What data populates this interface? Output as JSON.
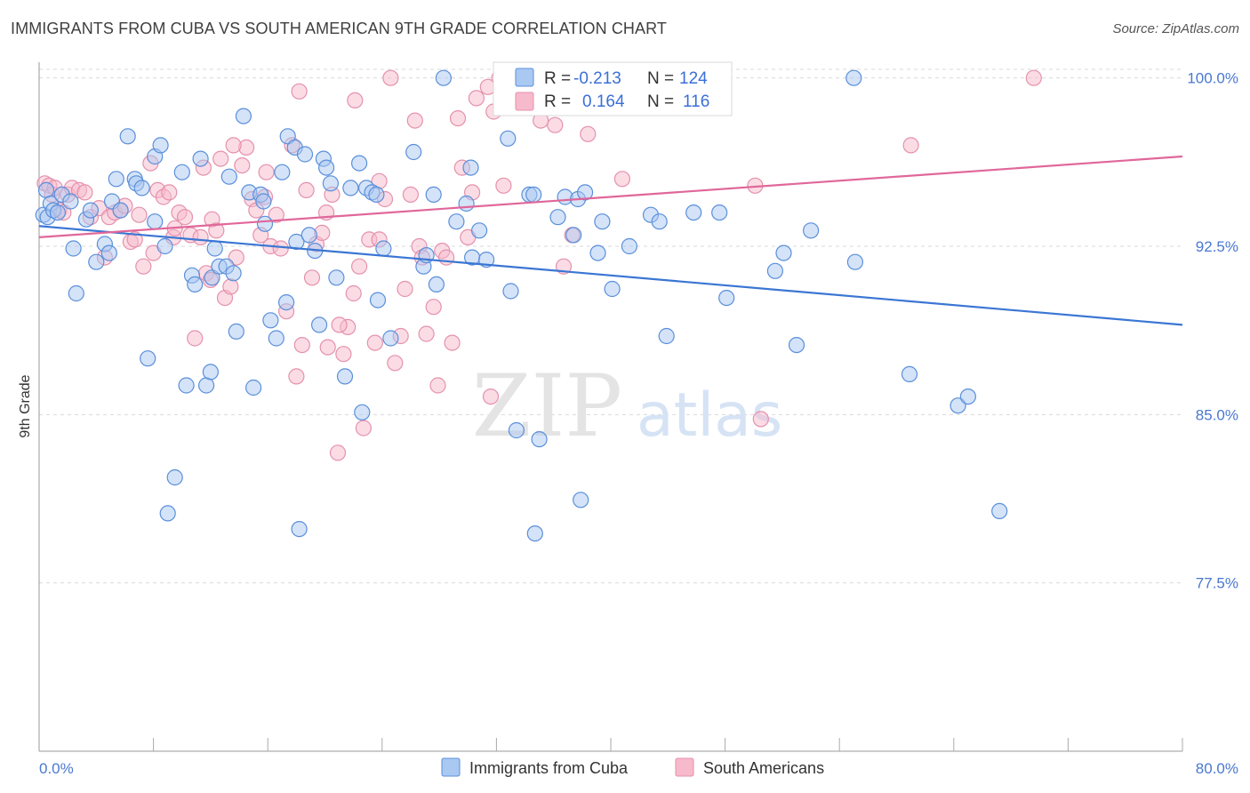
{
  "header": {
    "title": "IMMIGRANTS FROM CUBA VS SOUTH AMERICAN 9TH GRADE CORRELATION CHART",
    "source": "Source: ZipAtlas.com"
  },
  "watermark": {
    "zip": "ZIP",
    "atlas": "atlas"
  },
  "stats_box": {
    "rows": [
      {
        "r_label": "R = ",
        "r_value": "-0.213",
        "n_label": "N = ",
        "n_value": "124",
        "color": "#a9c8f2"
      },
      {
        "r_label": "R = ",
        "r_value": "0.164",
        "n_label": "N = ",
        "n_value": "116",
        "color": "#f7b9cc"
      }
    ]
  },
  "legend": {
    "items": [
      {
        "label": "Immigrants from Cuba",
        "color": "#a9c8f2"
      },
      {
        "label": "South Americans",
        "color": "#f7b9cc"
      }
    ]
  },
  "colors": {
    "blue_fill": "#a9c8f2",
    "blue_stroke": "#5a8fdb",
    "blue_line": "#3a76d4",
    "pink_fill": "#f7b9cc",
    "pink_stroke": "#e591ad",
    "pink_line": "#e0679a",
    "grid": "#d9d9d9",
    "tick_text": "#4a78d0"
  },
  "chart_data": {
    "type": "scatter",
    "title": "IMMIGRANTS FROM CUBA VS SOUTH AMERICAN 9TH GRADE CORRELATION CHART",
    "xlabel": "",
    "ylabel": "9th Grade",
    "xlim": [
      0,
      80
    ],
    "ylim": [
      70.0,
      100.7
    ],
    "x_tick_labels": [
      "0.0%",
      "80.0%"
    ],
    "y_ticks": [
      77.5,
      85.0,
      92.5,
      100.0
    ],
    "y_tick_labels": [
      "77.5%",
      "85.0%",
      "92.5%",
      "100.0%"
    ],
    "grid": true,
    "series": [
      {
        "name": "Immigrants from Cuba",
        "color": "#a9c8f2",
        "trend": {
          "x": [
            0,
            80
          ],
          "y": [
            93.4,
            89.0
          ]
        },
        "points": [
          [
            0.3,
            93.9
          ],
          [
            0.5,
            95.0
          ],
          [
            0.6,
            93.8
          ],
          [
            0.8,
            94.4
          ],
          [
            1.0,
            94.1
          ],
          [
            1.3,
            94.0
          ],
          [
            1.6,
            94.8
          ],
          [
            2.2,
            94.5
          ],
          [
            2.4,
            92.4
          ],
          [
            3.3,
            93.7
          ],
          [
            2.6,
            90.4
          ],
          [
            3.6,
            94.1
          ],
          [
            4.0,
            91.8
          ],
          [
            4.6,
            92.6
          ],
          [
            4.9,
            92.2
          ],
          [
            5.1,
            94.5
          ],
          [
            5.4,
            95.5
          ],
          [
            5.7,
            94.1
          ],
          [
            6.2,
            97.4
          ],
          [
            6.7,
            95.5
          ],
          [
            6.8,
            95.3
          ],
          [
            7.2,
            95.1
          ],
          [
            7.6,
            87.5
          ],
          [
            8.1,
            96.5
          ],
          [
            8.1,
            93.6
          ],
          [
            8.5,
            97.0
          ],
          [
            8.8,
            92.5
          ],
          [
            9.0,
            80.6
          ],
          [
            9.5,
            82.2
          ],
          [
            10.0,
            95.8
          ],
          [
            10.3,
            86.3
          ],
          [
            10.7,
            91.2
          ],
          [
            10.9,
            90.8
          ],
          [
            11.3,
            96.4
          ],
          [
            11.7,
            86.3
          ],
          [
            12.0,
            86.9
          ],
          [
            12.1,
            91.1
          ],
          [
            12.3,
            92.4
          ],
          [
            12.6,
            91.6
          ],
          [
            13.1,
            91.6
          ],
          [
            13.3,
            95.6
          ],
          [
            13.6,
            91.3
          ],
          [
            13.8,
            88.7
          ],
          [
            14.3,
            98.3
          ],
          [
            14.7,
            94.9
          ],
          [
            15.0,
            86.2
          ],
          [
            15.5,
            94.8
          ],
          [
            15.7,
            94.5
          ],
          [
            15.8,
            93.5
          ],
          [
            16.2,
            89.2
          ],
          [
            16.6,
            88.4
          ],
          [
            17.0,
            95.8
          ],
          [
            17.3,
            90.0
          ],
          [
            17.4,
            97.4
          ],
          [
            17.9,
            96.9
          ],
          [
            18.0,
            92.7
          ],
          [
            18.2,
            79.9
          ],
          [
            18.6,
            96.6
          ],
          [
            18.9,
            93.0
          ],
          [
            19.3,
            92.3
          ],
          [
            19.6,
            89.0
          ],
          [
            19.9,
            96.4
          ],
          [
            20.1,
            96.0
          ],
          [
            20.4,
            95.3
          ],
          [
            20.8,
            91.1
          ],
          [
            21.4,
            86.7
          ],
          [
            21.8,
            95.1
          ],
          [
            22.4,
            96.2
          ],
          [
            22.6,
            85.1
          ],
          [
            22.9,
            95.1
          ],
          [
            23.3,
            94.9
          ],
          [
            23.6,
            94.8
          ],
          [
            23.7,
            90.1
          ],
          [
            24.1,
            92.4
          ],
          [
            24.6,
            88.4
          ],
          [
            26.2,
            96.7
          ],
          [
            26.9,
            91.6
          ],
          [
            27.1,
            92.1
          ],
          [
            27.6,
            94.8
          ],
          [
            27.8,
            90.8
          ],
          [
            29.2,
            93.6
          ],
          [
            29.9,
            94.4
          ],
          [
            30.2,
            96.0
          ],
          [
            30.3,
            92.0
          ],
          [
            30.8,
            93.2
          ],
          [
            31.3,
            91.9
          ],
          [
            32.8,
            97.3
          ],
          [
            33.0,
            90.5
          ],
          [
            33.4,
            84.3
          ],
          [
            34.3,
            94.8
          ],
          [
            34.6,
            94.8
          ],
          [
            34.7,
            79.7
          ],
          [
            35.0,
            83.9
          ],
          [
            36.3,
            93.8
          ],
          [
            36.8,
            94.7
          ],
          [
            37.4,
            93.0
          ],
          [
            37.7,
            94.6
          ],
          [
            37.9,
            81.2
          ],
          [
            38.2,
            94.9
          ],
          [
            39.1,
            92.2
          ],
          [
            39.4,
            93.6
          ],
          [
            40.1,
            90.6
          ],
          [
            41.3,
            92.5
          ],
          [
            42.8,
            93.9
          ],
          [
            43.4,
            93.6
          ],
          [
            43.9,
            88.5
          ],
          [
            45.8,
            94.0
          ],
          [
            47.6,
            94.0
          ],
          [
            48.1,
            90.2
          ],
          [
            51.5,
            91.4
          ],
          [
            52.1,
            92.2
          ],
          [
            53.0,
            88.1
          ],
          [
            54.0,
            93.2
          ],
          [
            57.1,
            91.8
          ],
          [
            60.9,
            86.8
          ],
          [
            64.3,
            85.4
          ],
          [
            65.0,
            85.8
          ],
          [
            67.2,
            80.7
          ],
          [
            28.3,
            100.0
          ],
          [
            57.0,
            100.0
          ]
        ]
      },
      {
        "name": "South Americans",
        "color": "#f7b9cc",
        "trend": {
          "x": [
            0,
            80
          ],
          "y": [
            92.9,
            96.5
          ]
        },
        "points": [
          [
            0.4,
            95.3
          ],
          [
            0.7,
            95.2
          ],
          [
            0.9,
            94.8
          ],
          [
            1.1,
            95.1
          ],
          [
            1.4,
            94.1
          ],
          [
            1.7,
            94.0
          ],
          [
            2.0,
            94.8
          ],
          [
            2.3,
            95.1
          ],
          [
            2.8,
            95.0
          ],
          [
            3.2,
            94.9
          ],
          [
            3.6,
            93.8
          ],
          [
            4.2,
            94.2
          ],
          [
            4.6,
            92.0
          ],
          [
            4.9,
            93.8
          ],
          [
            5.3,
            94.0
          ],
          [
            5.7,
            94.1
          ],
          [
            6.0,
            94.3
          ],
          [
            6.4,
            92.7
          ],
          [
            6.7,
            92.8
          ],
          [
            7.0,
            93.9
          ],
          [
            7.3,
            91.6
          ],
          [
            7.8,
            96.2
          ],
          [
            8.0,
            92.2
          ],
          [
            8.3,
            95.0
          ],
          [
            8.7,
            94.7
          ],
          [
            9.1,
            94.9
          ],
          [
            9.4,
            92.9
          ],
          [
            9.8,
            94.0
          ],
          [
            10.2,
            93.8
          ],
          [
            10.6,
            93.0
          ],
          [
            10.9,
            88.4
          ],
          [
            11.3,
            92.9
          ],
          [
            11.7,
            91.3
          ],
          [
            12.1,
            93.7
          ],
          [
            12.4,
            93.2
          ],
          [
            12.7,
            96.4
          ],
          [
            13.0,
            90.2
          ],
          [
            13.4,
            90.7
          ],
          [
            13.8,
            92.0
          ],
          [
            14.2,
            96.1
          ],
          [
            14.5,
            96.9
          ],
          [
            14.9,
            94.6
          ],
          [
            15.2,
            94.1
          ],
          [
            15.5,
            93.0
          ],
          [
            15.9,
            95.8
          ],
          [
            16.2,
            92.5
          ],
          [
            16.6,
            93.9
          ],
          [
            16.9,
            92.4
          ],
          [
            17.3,
            89.6
          ],
          [
            17.7,
            97.0
          ],
          [
            18.0,
            86.7
          ],
          [
            18.4,
            88.1
          ],
          [
            18.7,
            95.0
          ],
          [
            19.1,
            91.1
          ],
          [
            19.4,
            92.6
          ],
          [
            19.8,
            93.1
          ],
          [
            20.2,
            88.0
          ],
          [
            20.5,
            94.8
          ],
          [
            20.9,
            83.3
          ],
          [
            21.3,
            87.7
          ],
          [
            21.6,
            88.9
          ],
          [
            22.0,
            90.4
          ],
          [
            22.4,
            91.6
          ],
          [
            22.7,
            84.4
          ],
          [
            23.1,
            92.8
          ],
          [
            23.5,
            88.2
          ],
          [
            23.8,
            95.4
          ],
          [
            24.2,
            94.6
          ],
          [
            24.9,
            87.3
          ],
          [
            25.3,
            88.5
          ],
          [
            25.6,
            90.6
          ],
          [
            26.0,
            94.8
          ],
          [
            26.3,
            98.1
          ],
          [
            26.6,
            92.5
          ],
          [
            27.1,
            88.6
          ],
          [
            27.6,
            89.8
          ],
          [
            27.9,
            86.3
          ],
          [
            28.2,
            92.3
          ],
          [
            28.5,
            92.0
          ],
          [
            28.9,
            88.2
          ],
          [
            29.3,
            98.2
          ],
          [
            29.6,
            96.0
          ],
          [
            30.0,
            92.9
          ],
          [
            30.3,
            94.9
          ],
          [
            30.6,
            99.1
          ],
          [
            31.4,
            99.6
          ],
          [
            31.6,
            85.8
          ],
          [
            31.8,
            98.5
          ],
          [
            32.5,
            95.2
          ],
          [
            33.0,
            99.7
          ],
          [
            34.2,
            100.0
          ],
          [
            35.1,
            98.1
          ],
          [
            36.1,
            97.9
          ],
          [
            36.7,
            91.6
          ],
          [
            37.3,
            93.0
          ],
          [
            38.4,
            97.5
          ],
          [
            39.9,
            99.2
          ],
          [
            40.8,
            95.5
          ],
          [
            50.1,
            95.2
          ],
          [
            50.5,
            84.8
          ],
          [
            61.0,
            97.0
          ],
          [
            69.6,
            100.0
          ],
          [
            12.0,
            91.0
          ],
          [
            18.2,
            99.4
          ],
          [
            9.5,
            93.3
          ],
          [
            15.8,
            94.7
          ],
          [
            23.8,
            92.8
          ],
          [
            38.3,
            100.0
          ],
          [
            24.6,
            100.0
          ],
          [
            20.1,
            94.0
          ],
          [
            11.5,
            96.0
          ],
          [
            22.1,
            99.0
          ],
          [
            26.8,
            92.0
          ],
          [
            34.0,
            99.0
          ],
          [
            21.0,
            89.0
          ],
          [
            13.6,
            97.0
          ],
          [
            32.2,
            100.0
          ]
        ]
      }
    ]
  }
}
